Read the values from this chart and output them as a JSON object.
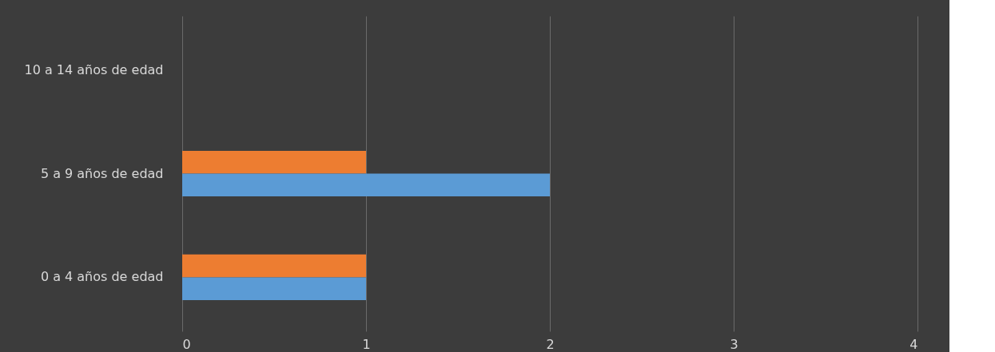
{
  "chart_data": {
    "type": "bar",
    "orientation": "horizontal",
    "categories": [
      "10 a 14 años de edad",
      "5 a 9 años de edad",
      "0 a 4 años de edad"
    ],
    "series": [
      {
        "color": "#ed7d31",
        "values": [
          null,
          1,
          1
        ]
      },
      {
        "color": "#5b9bd5",
        "values": [
          null,
          2,
          1
        ]
      }
    ],
    "xlim": [
      0,
      4
    ],
    "xticks": [
      0,
      1,
      2,
      3,
      4
    ],
    "grid": "x",
    "legend": false
  }
}
